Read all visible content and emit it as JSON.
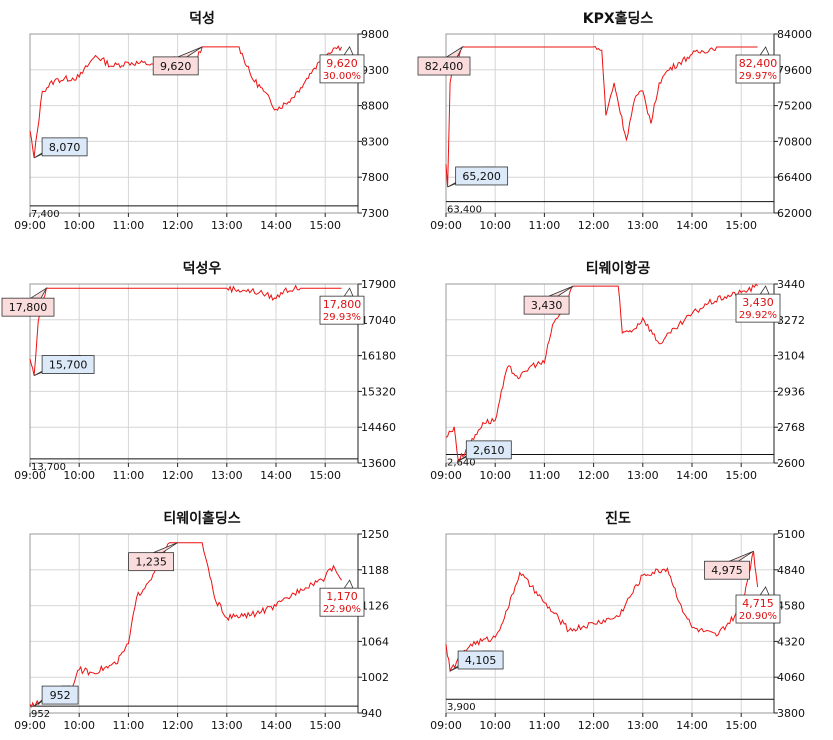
{
  "page": {
    "layout": "3x2 grid of intraday stock price charts"
  },
  "colors": {
    "line": "#ee1111",
    "grid": "#d6d6d6",
    "axis": "#222222",
    "high_box": "#fadcdc",
    "low_box": "#dbe9f9",
    "red_text": "#dd1111"
  },
  "chart_data": [
    {
      "type": "line",
      "title": "덕성",
      "x_ticks": [
        "09:00",
        "10:00",
        "11:00",
        "12:00",
        "13:00",
        "14:00",
        "15:00"
      ],
      "y_ticks": [
        "9800",
        "9300",
        "8800",
        "8300",
        "7800",
        "7300"
      ],
      "ylim": [
        7300,
        9800
      ],
      "limit_low": 7400,
      "limit_low_label": "7,400",
      "high_label": "9,620",
      "low_label": "8,070",
      "last_label": "9,620",
      "last_pct": "30.00%",
      "high_time": "12:30",
      "low_time": "09:05",
      "series": [
        {
          "x": [
            "09:00",
            "09:05",
            "09:15",
            "09:30",
            "10:00",
            "10:20",
            "10:40",
            "11:00",
            "11:30",
            "12:00",
            "12:20",
            "12:30",
            "13:00",
            "13:15",
            "13:30",
            "13:45",
            "14:00",
            "14:15",
            "14:30",
            "14:45",
            "15:00",
            "15:10",
            "15:20"
          ],
          "values": [
            8450,
            8070,
            9000,
            9150,
            9200,
            9500,
            9350,
            9400,
            9380,
            9450,
            9400,
            9620,
            9620,
            9620,
            9200,
            9000,
            8750,
            8850,
            9050,
            9300,
            9500,
            9600,
            9620
          ]
        }
      ]
    },
    {
      "type": "line",
      "title": "KPX홀딩스",
      "x_ticks": [
        "09:00",
        "10:00",
        "11:00",
        "12:00",
        "13:00",
        "14:00",
        "15:00"
      ],
      "y_ticks": [
        "84000",
        "79600",
        "75200",
        "70800",
        "66400",
        "62000"
      ],
      "ylim": [
        62000,
        84000
      ],
      "limit_low": 63400,
      "limit_low_label": "63,400",
      "high_label": "82,400",
      "low_label": "65,200",
      "last_label": "82,400",
      "last_pct": "29.97%",
      "high_time": "09:20",
      "low_time": "09:02",
      "series": [
        {
          "x": [
            "09:00",
            "09:02",
            "09:05",
            "09:10",
            "09:20",
            "10:00",
            "11:00",
            "11:40",
            "12:00",
            "12:10",
            "12:15",
            "12:25",
            "12:40",
            "12:50",
            "13:00",
            "13:10",
            "13:20",
            "13:30",
            "13:45",
            "14:00",
            "14:30",
            "15:00",
            "15:20"
          ],
          "values": [
            68000,
            65200,
            78000,
            80500,
            82400,
            82400,
            82400,
            82400,
            82400,
            82000,
            74000,
            78000,
            71000,
            76000,
            77000,
            73000,
            78000,
            79500,
            80500,
            81500,
            82400,
            82400,
            82400
          ]
        }
      ]
    },
    {
      "type": "line",
      "title": "덕성우",
      "x_ticks": [
        "09:00",
        "10:00",
        "11:00",
        "12:00",
        "13:00",
        "14:00",
        "15:00"
      ],
      "y_ticks": [
        "17900",
        "17040",
        "16180",
        "15320",
        "14460",
        "13600"
      ],
      "ylim": [
        13600,
        17900
      ],
      "limit_low": 13700,
      "limit_low_label": "13,700",
      "high_label": "17,800",
      "low_label": "15,700",
      "last_label": "17,800",
      "last_pct": "29.93%",
      "high_time": "09:20",
      "low_time": "09:05",
      "series": [
        {
          "x": [
            "09:00",
            "09:05",
            "09:10",
            "09:20",
            "10:00",
            "11:00",
            "12:00",
            "13:00",
            "13:20",
            "13:40",
            "14:00",
            "14:10",
            "14:30",
            "15:00",
            "15:20"
          ],
          "values": [
            16100,
            15700,
            17000,
            17800,
            17800,
            17800,
            17800,
            17800,
            17750,
            17700,
            17550,
            17750,
            17800,
            17800,
            17800
          ]
        }
      ]
    },
    {
      "type": "line",
      "title": "티웨이항공",
      "x_ticks": [
        "09:00",
        "10:00",
        "11:00",
        "12:00",
        "13:00",
        "14:00",
        "15:00"
      ],
      "y_ticks": [
        "3440",
        "3272",
        "3104",
        "2936",
        "2768",
        "2600"
      ],
      "ylim": [
        2600,
        3440
      ],
      "limit_low": 2640,
      "limit_low_label": "2,640",
      "high_label": "3,430",
      "low_label": "2,610",
      "last_label": "3,430",
      "last_pct": "29.92%",
      "high_time": "11:35",
      "low_time": "09:15",
      "series": [
        {
          "x": [
            "09:00",
            "09:10",
            "09:15",
            "09:30",
            "09:45",
            "10:00",
            "10:15",
            "10:30",
            "10:45",
            "11:00",
            "11:10",
            "11:20",
            "11:35",
            "12:00",
            "12:30",
            "12:35",
            "12:50",
            "13:00",
            "13:20",
            "13:40",
            "14:00",
            "14:20",
            "14:40",
            "15:00",
            "15:20"
          ],
          "values": [
            2720,
            2770,
            2610,
            2690,
            2790,
            2800,
            3050,
            3000,
            3060,
            3070,
            3250,
            3300,
            3430,
            3430,
            3430,
            3210,
            3230,
            3280,
            3160,
            3230,
            3300,
            3350,
            3380,
            3400,
            3430
          ]
        }
      ]
    },
    {
      "type": "line",
      "title": "티웨이홀딩스",
      "x_ticks": [
        "09:00",
        "10:00",
        "11:00",
        "12:00",
        "13:00",
        "14:00",
        "15:00"
      ],
      "y_ticks": [
        "1250",
        "1188",
        "1126",
        "1064",
        "1002",
        "940"
      ],
      "ylim": [
        940,
        1250
      ],
      "limit_low": 952,
      "limit_low_label": "952",
      "high_label": "1,235",
      "low_label": "952",
      "last_label": "1,170",
      "last_pct": "22.90%",
      "high_time": "12:00",
      "low_time": "09:05",
      "series": [
        {
          "x": [
            "09:00",
            "09:05",
            "09:20",
            "09:50",
            "10:00",
            "10:15",
            "10:45",
            "11:00",
            "11:10",
            "11:30",
            "11:50",
            "12:00",
            "12:30",
            "12:45",
            "13:00",
            "13:30",
            "14:00",
            "14:30",
            "15:00",
            "15:10",
            "15:20"
          ],
          "values": [
            955,
            952,
            968,
            985,
            1015,
            1010,
            1025,
            1060,
            1140,
            1180,
            1235,
            1235,
            1235,
            1140,
            1105,
            1110,
            1125,
            1155,
            1175,
            1195,
            1170
          ]
        }
      ]
    },
    {
      "type": "line",
      "title": "진도",
      "x_ticks": [
        "09:00",
        "10:00",
        "11:00",
        "12:00",
        "13:00",
        "14:00",
        "15:00"
      ],
      "y_ticks": [
        "5100",
        "4840",
        "4580",
        "4320",
        "4060",
        "3800"
      ],
      "ylim": [
        3800,
        5100
      ],
      "limit_low": 3900,
      "limit_low_label": "3,900",
      "high_label": "4,975",
      "low_label": "4,105",
      "last_label": "4,715",
      "last_pct": "20.90%",
      "high_time": "15:15",
      "low_time": "09:05",
      "series": [
        {
          "x": [
            "09:00",
            "09:05",
            "09:30",
            "10:00",
            "10:15",
            "10:30",
            "11:00",
            "11:30",
            "12:00",
            "12:30",
            "13:00",
            "13:30",
            "13:45",
            "14:00",
            "14:30",
            "15:00",
            "15:15",
            "15:20"
          ],
          "values": [
            4300,
            4105,
            4300,
            4350,
            4550,
            4820,
            4600,
            4400,
            4450,
            4500,
            4800,
            4850,
            4600,
            4420,
            4360,
            4550,
            4975,
            4715
          ]
        }
      ]
    }
  ]
}
